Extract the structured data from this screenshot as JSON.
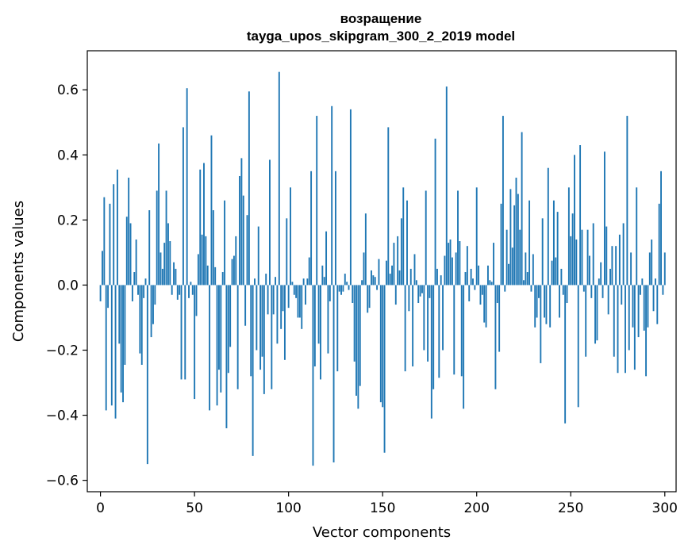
{
  "chart_data": {
    "type": "bar",
    "title": "возращение",
    "subtitle": "tayga_upos_skipgram_300_2_2019 model",
    "xlabel": "Vector components",
    "ylabel": "Components values",
    "xlim": [
      -7,
      306
    ],
    "ylim": [
      -0.635,
      0.72
    ],
    "xticks": [
      0,
      50,
      100,
      150,
      200,
      250,
      300
    ],
    "xtick_labels": [
      "0",
      "50",
      "100",
      "150",
      "200",
      "250",
      "300"
    ],
    "yticks": [
      -0.6,
      -0.4,
      -0.2,
      0.0,
      0.2,
      0.4,
      0.6
    ],
    "ytick_labels": [
      "−0.6",
      "−0.4",
      "−0.2",
      "0.0",
      "0.2",
      "0.4",
      "0.6"
    ],
    "bar_color": "#1f77b4",
    "grid": false,
    "x_start": 0,
    "values": [
      -0.05,
      0.105,
      0.27,
      -0.385,
      -0.07,
      0.25,
      -0.37,
      0.31,
      -0.41,
      0.355,
      -0.18,
      -0.33,
      -0.36,
      -0.245,
      0.21,
      0.33,
      0.19,
      -0.05,
      0.04,
      0.14,
      -0.03,
      -0.21,
      -0.245,
      -0.04,
      0.02,
      -0.55,
      0.23,
      -0.16,
      -0.12,
      -0.06,
      0.29,
      0.435,
      0.1,
      0.05,
      0.13,
      0.29,
      0.19,
      0.135,
      -0.03,
      0.07,
      0.05,
      -0.045,
      -0.03,
      -0.29,
      0.485,
      -0.29,
      0.605,
      -0.04,
      0.01,
      -0.03,
      -0.35,
      -0.095,
      0.095,
      0.355,
      0.155,
      0.375,
      0.15,
      0.06,
      -0.385,
      0.46,
      0.23,
      0.055,
      -0.37,
      -0.26,
      -0.33,
      0.04,
      0.26,
      -0.44,
      -0.27,
      -0.19,
      0.08,
      0.09,
      0.15,
      -0.32,
      0.335,
      0.39,
      0.275,
      -0.125,
      0.215,
      0.595,
      -0.28,
      -0.525,
      0.02,
      -0.2,
      0.18,
      -0.26,
      -0.22,
      -0.335,
      0.035,
      -0.09,
      0.385,
      -0.32,
      -0.09,
      0.025,
      -0.18,
      0.655,
      -0.135,
      -0.08,
      -0.23,
      0.205,
      -0.07,
      0.3,
      0.01,
      -0.03,
      -0.04,
      -0.1,
      -0.1,
      -0.135,
      0.02,
      -0.06,
      0.02,
      0.085,
      0.35,
      -0.555,
      -0.25,
      0.52,
      -0.18,
      -0.29,
      0.06,
      0.025,
      0.165,
      -0.21,
      -0.05,
      0.55,
      -0.545,
      0.35,
      -0.265,
      -0.02,
      -0.03,
      -0.02,
      0.035,
      0.01,
      -0.015,
      0.54,
      -0.055,
      -0.235,
      -0.34,
      -0.38,
      -0.31,
      0.015,
      0.1,
      0.22,
      -0.085,
      -0.07,
      0.045,
      0.03,
      0.025,
      -0.015,
      0.08,
      -0.36,
      -0.375,
      -0.515,
      0.075,
      0.485,
      0.035,
      0.06,
      0.13,
      -0.06,
      0.15,
      0.045,
      0.205,
      0.3,
      -0.265,
      0.26,
      -0.08,
      0.05,
      -0.25,
      0.095,
      0.015,
      -0.055,
      -0.035,
      -0.025,
      -0.2,
      0.29,
      -0.235,
      -0.04,
      -0.41,
      -0.32,
      0.45,
      0.05,
      -0.285,
      0.03,
      -0.2,
      0.09,
      0.61,
      0.13,
      0.14,
      0.085,
      -0.275,
      0.1,
      0.29,
      0.135,
      -0.28,
      -0.38,
      0.04,
      0.12,
      -0.05,
      0.05,
      0.02,
      -0.015,
      0.3,
      0.06,
      -0.06,
      -0.03,
      -0.115,
      -0.13,
      0.06,
      0.015,
      0.01,
      0.13,
      -0.32,
      -0.055,
      -0.205,
      0.25,
      0.52,
      -0.02,
      0.17,
      0.065,
      0.295,
      0.115,
      0.245,
      0.33,
      0.28,
      0.17,
      0.47,
      0.015,
      0.1,
      0.04,
      0.26,
      -0.02,
      0.095,
      -0.13,
      -0.1,
      -0.04,
      -0.24,
      0.205,
      -0.1,
      -0.12,
      0.36,
      -0.13,
      0.075,
      0.26,
      0.085,
      0.225,
      -0.1,
      0.05,
      -0.03,
      -0.425,
      -0.055,
      0.3,
      0.15,
      0.22,
      0.4,
      0.14,
      -0.375,
      0.43,
      0.17,
      -0.02,
      -0.22,
      0.17,
      0.09,
      -0.04,
      0.19,
      -0.18,
      -0.17,
      0.02,
      0.07,
      -0.04,
      0.41,
      0.18,
      -0.09,
      0.05,
      0.12,
      -0.22,
      0.12,
      -0.27,
      0.155,
      -0.06,
      0.19,
      -0.27,
      0.52,
      -0.2,
      0.1,
      -0.13,
      -0.26,
      0.3,
      -0.16,
      -0.03,
      0.02,
      -0.14,
      -0.28,
      -0.13,
      0.1,
      0.14,
      -0.08,
      0.02,
      -0.12,
      0.25,
      0.35,
      -0.03,
      0.1
    ]
  }
}
